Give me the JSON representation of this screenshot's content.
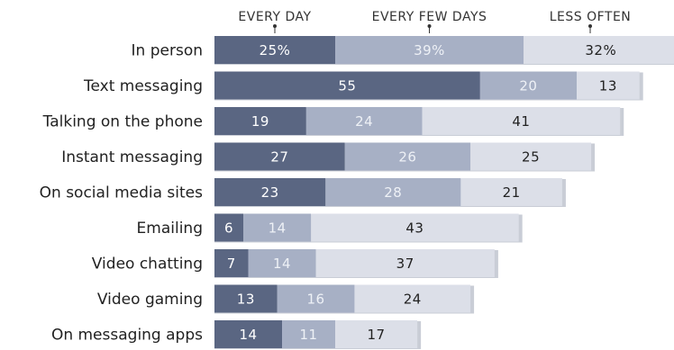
{
  "chart_data": {
    "type": "bar",
    "orientation": "horizontal",
    "stacked": true,
    "legend_position": "top",
    "categories": [
      "In person",
      "Text messaging",
      "Talking on the phone",
      "Instant messaging",
      "On social media sites",
      "Emailing",
      "Video chatting",
      "Video gaming",
      "On messaging apps"
    ],
    "series": [
      {
        "name": "EVERY DAY",
        "values": [
          25,
          55,
          19,
          27,
          23,
          6,
          7,
          13,
          14
        ],
        "labels": [
          "25%",
          "55",
          "19",
          "27",
          "23",
          "6",
          "7",
          "13",
          "14"
        ]
      },
      {
        "name": "EVERY FEW DAYS",
        "values": [
          39,
          20,
          24,
          26,
          28,
          14,
          14,
          16,
          11
        ],
        "labels": [
          "39%",
          "20",
          "24",
          "26",
          "28",
          "14",
          "14",
          "16",
          "11"
        ]
      },
      {
        "name": "LESS OFTEN",
        "values": [
          32,
          13,
          41,
          25,
          21,
          43,
          37,
          24,
          17
        ],
        "labels": [
          "32%",
          "13",
          "41",
          "25",
          "21",
          "43",
          "37",
          "24",
          "17"
        ]
      }
    ],
    "colors": [
      "#5a6682",
      "#a7b0c5",
      "#dcdfe8"
    ],
    "label_colors": [
      "#ffffff",
      "#eef1f6",
      "#222222"
    ],
    "shadow_color": "#c9cdd6",
    "xlim": [
      0,
      100
    ]
  }
}
